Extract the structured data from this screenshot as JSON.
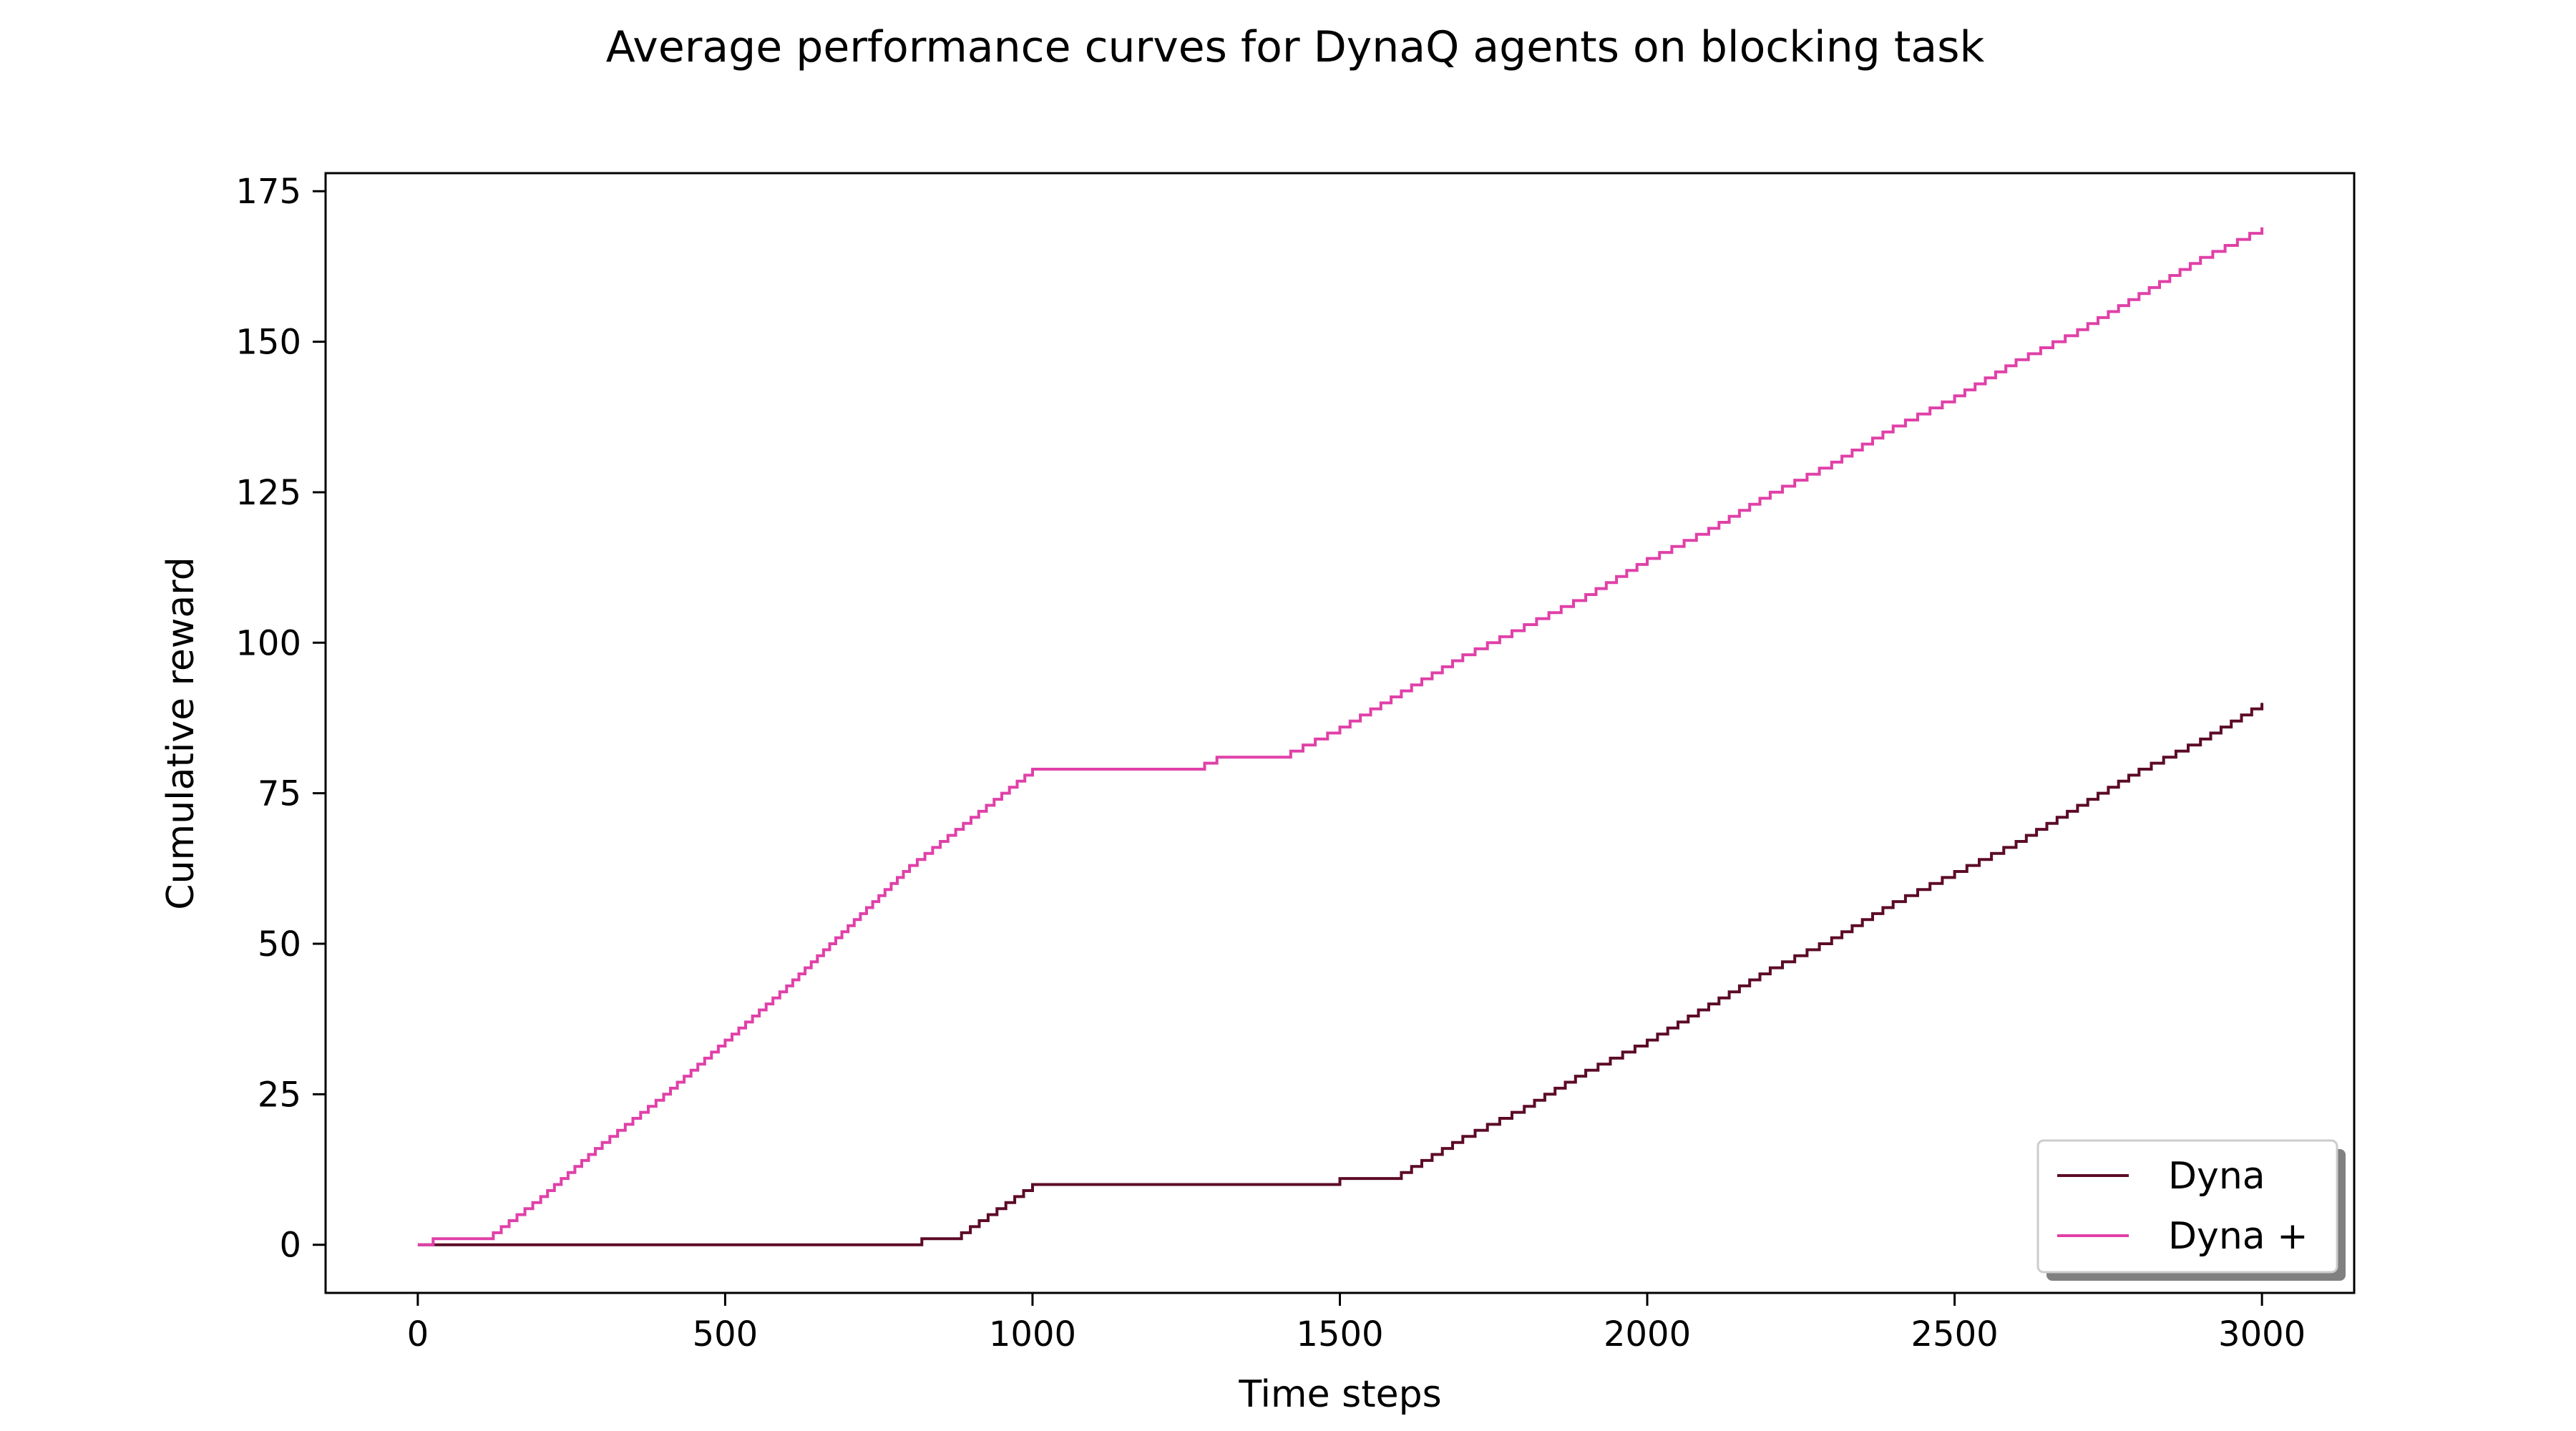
{
  "chart_data": {
    "type": "line",
    "title": "Average performance curves for DynaQ agents on blocking task",
    "xlabel": "Time steps",
    "ylabel": "Cumulative reward",
    "xlim": [
      -150,
      3150
    ],
    "ylim": [
      -8,
      178
    ],
    "xticks": [
      0,
      500,
      1000,
      1500,
      2000,
      2500,
      3000
    ],
    "yticks": [
      0,
      25,
      50,
      75,
      100,
      125,
      150,
      175
    ],
    "grid": false,
    "legend_position": "lower-right",
    "series": [
      {
        "name": "Dyna",
        "color": "#5c0a28",
        "x": [
          0,
          820,
          870,
          1000,
          1500,
          1590,
          1600,
          1700,
          1800,
          1900,
          2000,
          2100,
          2200,
          2300,
          2400,
          2500,
          2600,
          2700,
          2800,
          2900,
          3000
        ],
        "y": [
          0,
          1,
          1,
          10,
          11,
          11,
          12,
          18,
          23,
          29,
          34,
          40,
          46,
          51,
          57,
          62,
          67,
          73,
          79,
          84,
          90
        ]
      },
      {
        "name": "Dyna +",
        "color": "#e040a8",
        "x": [
          0,
          25,
          110,
          200,
          300,
          400,
          500,
          600,
          700,
          800,
          900,
          1000,
          1260,
          1300,
          1400,
          1500,
          1600,
          1700,
          1800,
          1900,
          2000,
          2100,
          2200,
          2300,
          2400,
          2500,
          2600,
          2700,
          2800,
          2900,
          3000
        ],
        "y": [
          0,
          1,
          1,
          8,
          17,
          25,
          34,
          43,
          53,
          63,
          71,
          79,
          79,
          81,
          81,
          86,
          92,
          98,
          103,
          108,
          114,
          119,
          125,
          130,
          136,
          141,
          147,
          152,
          158,
          164,
          169
        ]
      }
    ]
  }
}
